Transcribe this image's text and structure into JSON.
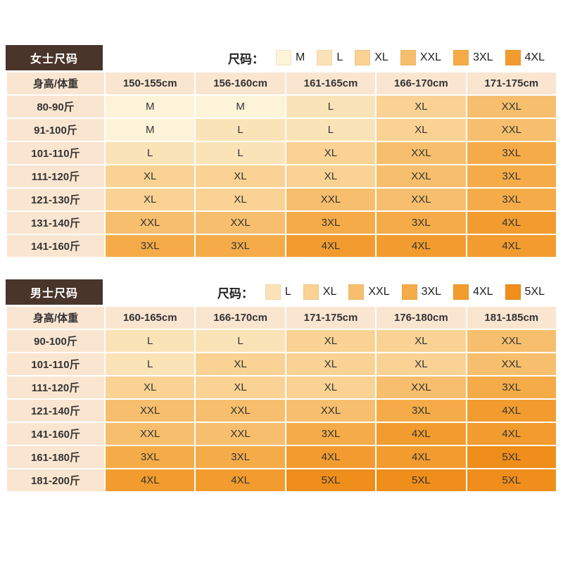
{
  "theme": {
    "title_bg": "#4a352b",
    "title_text": "#ffffff",
    "header_bg": "#fae5d0",
    "page_bg": "#ffffff",
    "text": "#333333"
  },
  "size_colors": {
    "M": "#fdf3d9",
    "L": "#fbe3b8",
    "XL": "#f9d294",
    "XXL": "#f7bf6d",
    "3XL": "#f5ac48",
    "4XL": "#f29c2f",
    "5XL": "#ef8e1b"
  },
  "chart_data": [
    {
      "type": "table",
      "title": "女士尺码",
      "legend_label": "尺码：",
      "legend": [
        "M",
        "L",
        "XL",
        "XXL",
        "3XL",
        "4XL"
      ],
      "columns": [
        "身高/体重",
        "150-155cm",
        "156-160cm",
        "161-165cm",
        "166-170cm",
        "171-175cm"
      ],
      "rows": [
        {
          "label": "80-90斤",
          "values": [
            "M",
            "M",
            "L",
            "XL",
            "XXL"
          ]
        },
        {
          "label": "91-100斤",
          "values": [
            "M",
            "L",
            "L",
            "XL",
            "XXL"
          ]
        },
        {
          "label": "101-110斤",
          "values": [
            "L",
            "L",
            "XL",
            "XXL",
            "3XL"
          ]
        },
        {
          "label": "111-120斤",
          "values": [
            "XL",
            "XL",
            "XL",
            "XXL",
            "3XL"
          ]
        },
        {
          "label": "121-130斤",
          "values": [
            "XL",
            "XL",
            "XXL",
            "XXL",
            "3XL"
          ]
        },
        {
          "label": "131-140斤",
          "values": [
            "XXL",
            "XXL",
            "3XL",
            "3XL",
            "4XL"
          ]
        },
        {
          "label": "141-160斤",
          "values": [
            "3XL",
            "3XL",
            "4XL",
            "4XL",
            "4XL"
          ]
        }
      ]
    },
    {
      "type": "table",
      "title": "男士尺码",
      "legend_label": "尺码：",
      "legend": [
        "L",
        "XL",
        "XXL",
        "3XL",
        "4XL",
        "5XL"
      ],
      "columns": [
        "身高/体重",
        "160-165cm",
        "166-170cm",
        "171-175cm",
        "176-180cm",
        "181-185cm"
      ],
      "rows": [
        {
          "label": "90-100斤",
          "values": [
            "L",
            "L",
            "XL",
            "XL",
            "XXL"
          ]
        },
        {
          "label": "101-110斤",
          "values": [
            "L",
            "XL",
            "XL",
            "XL",
            "XXL"
          ]
        },
        {
          "label": "111-120斤",
          "values": [
            "XL",
            "XL",
            "XL",
            "XXL",
            "3XL"
          ]
        },
        {
          "label": "121-140斤",
          "values": [
            "XXL",
            "XXL",
            "XXL",
            "3XL",
            "4XL"
          ]
        },
        {
          "label": "141-160斤",
          "values": [
            "XXL",
            "XXL",
            "3XL",
            "4XL",
            "4XL"
          ]
        },
        {
          "label": "161-180斤",
          "values": [
            "3XL",
            "3XL",
            "4XL",
            "4XL",
            "5XL"
          ]
        },
        {
          "label": "181-200斤",
          "values": [
            "4XL",
            "4XL",
            "5XL",
            "5XL",
            "5XL"
          ]
        }
      ]
    }
  ]
}
